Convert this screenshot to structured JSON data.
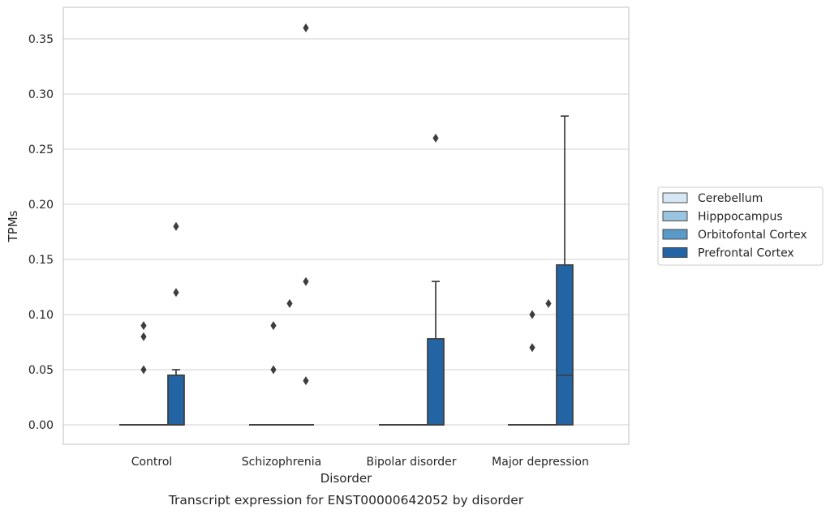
{
  "chart_data": {
    "type": "box",
    "xlabel": "Disorder",
    "ylabel": "TPMs",
    "caption": "Transcript expression for ENST00000642052 by disorder",
    "ylim": [
      -0.0175,
      0.38
    ],
    "yticks": [
      0.0,
      0.05,
      0.1,
      0.15,
      0.2,
      0.25,
      0.3,
      0.35
    ],
    "ytick_labels": [
      "0.00",
      "0.05",
      "0.10",
      "0.15",
      "0.20",
      "0.25",
      "0.30",
      "0.35"
    ],
    "grid": "horizontal",
    "legend_placement": "right",
    "categories": [
      "Control",
      "Schizophrenia",
      "Bipolar disorder",
      "Major depression"
    ],
    "series": [
      {
        "name": "Cerebellum",
        "color": "#d6e6f4",
        "boxes": [
          {
            "q1": 0,
            "median": 0,
            "q3": 0,
            "whisker_low": 0,
            "whisker_high": 0,
            "outliers": []
          },
          {
            "q1": 0,
            "median": 0,
            "q3": 0,
            "whisker_low": 0,
            "whisker_high": 0,
            "outliers": []
          },
          {
            "q1": 0,
            "median": 0,
            "q3": 0,
            "whisker_low": 0,
            "whisker_high": 0,
            "outliers": []
          },
          {
            "q1": 0,
            "median": 0,
            "q3": 0,
            "whisker_low": 0,
            "whisker_high": 0,
            "outliers": []
          }
        ]
      },
      {
        "name": "Hipppocampus",
        "color": "#9ac4df",
        "boxes": [
          {
            "q1": 0,
            "median": 0,
            "q3": 0,
            "whisker_low": 0,
            "whisker_high": 0,
            "outliers": [
              0.05,
              0.08,
              0.09
            ]
          },
          {
            "q1": 0,
            "median": 0,
            "q3": 0,
            "whisker_low": 0,
            "whisker_high": 0,
            "outliers": [
              0.05,
              0.09
            ]
          },
          {
            "q1": 0,
            "median": 0,
            "q3": 0,
            "whisker_low": 0,
            "whisker_high": 0,
            "outliers": []
          },
          {
            "q1": 0,
            "median": 0,
            "q3": 0,
            "whisker_low": 0,
            "whisker_high": 0,
            "outliers": [
              0.07,
              0.1
            ]
          }
        ]
      },
      {
        "name": "Orbitofontal Cortex",
        "color": "#5a9ac8",
        "boxes": [
          {
            "q1": 0,
            "median": 0,
            "q3": 0,
            "whisker_low": 0,
            "whisker_high": 0,
            "outliers": []
          },
          {
            "q1": 0,
            "median": 0,
            "q3": 0,
            "whisker_low": 0,
            "whisker_high": 0,
            "outliers": [
              0.11
            ]
          },
          {
            "q1": 0,
            "median": 0,
            "q3": 0,
            "whisker_low": 0,
            "whisker_high": 0,
            "outliers": []
          },
          {
            "q1": 0,
            "median": 0,
            "q3": 0,
            "whisker_low": 0,
            "whisker_high": 0,
            "outliers": [
              0.11
            ]
          }
        ]
      },
      {
        "name": "Prefrontal Cortex",
        "color": "#2365a4",
        "boxes": [
          {
            "q1": 0,
            "median": 0,
            "q3": 0.045,
            "whisker_low": 0,
            "whisker_high": 0.05,
            "outliers": [
              0.12,
              0.18
            ]
          },
          {
            "q1": 0,
            "median": 0,
            "q3": 0,
            "whisker_low": 0,
            "whisker_high": 0,
            "outliers": [
              0.04,
              0.13,
              0.36
            ]
          },
          {
            "q1": 0,
            "median": 0,
            "q3": 0.078,
            "whisker_low": 0,
            "whisker_high": 0.13,
            "outliers": [
              0.26
            ]
          },
          {
            "q1": 0,
            "median": 0.045,
            "q3": 0.145,
            "whisker_low": 0,
            "whisker_high": 0.28,
            "outliers": []
          }
        ]
      }
    ],
    "colors": {
      "box_edge": "#3d3d3d",
      "grid": "#d0d0d0",
      "frame": "#cccccc",
      "text": "#262626"
    }
  }
}
